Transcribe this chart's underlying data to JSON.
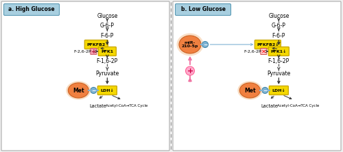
{
  "bg_color": "#f0f0f0",
  "panel_bg": "#ffffff",
  "label_bg": "#a8cfe0",
  "yellow_box": "#f5d800",
  "yellow_edge": "#ccaa00",
  "pink_plus": "#f4a0b0",
  "pink_x_bg": "#ffcccc",
  "met_inner": "#f08040",
  "met_outer": "#f4c090",
  "met_edge": "#cc6020",
  "blue_dot": "#7fb3d3",
  "blue_edge": "#4488aa",
  "pink_line": "#f070a0",
  "plus_circle_bg": "#ffaacc",
  "plus_circle_edge": "#ff6699",
  "arrow_color": "#333333",
  "dashed_color": "#555555",
  "divider_color": "#999999",
  "title_a": "a. High Glucose",
  "title_b": "b. Low Glucose",
  "panel_a": {
    "pfkfb2_label": "PFKFB2",
    "pfk1_label": "PFK1",
    "ldh_label": "LDH↓",
    "f262_label": "F-2,6-2P",
    "met_label": "Met",
    "lactate_label": "Lactate",
    "tca_label": "Acetyl-CoA→TCA Cycle"
  },
  "panel_b": {
    "pfkfb2_label": "PFKFB2↓",
    "pfk1_label": "PFK1↓",
    "ldh_label": "LDH↓",
    "f262_label": "F-2,6-2P",
    "met_label": "Met",
    "mir_label": "miR-\n210-5p",
    "lactate_label": "Lactate",
    "tca_label": "Acetyl-CoA→TCA Cycle"
  }
}
